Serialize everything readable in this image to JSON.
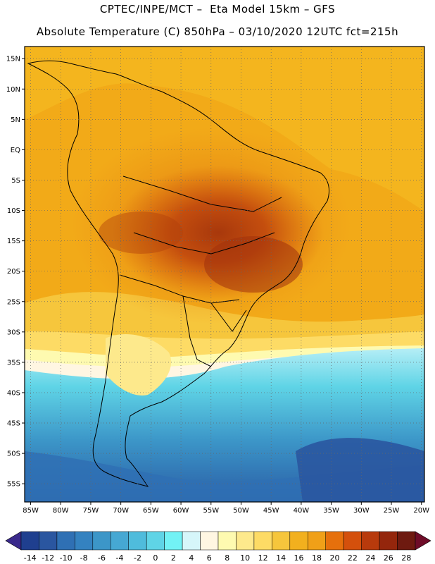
{
  "header": {
    "line1": "CPTEC/INPE/MCT –  Eta Model 15km – GFS",
    "line2": "Absolute Temperature (C) 850hPa – 03/10/2020 12UTC fct=215h"
  },
  "map": {
    "lat_labels": [
      "15N",
      "10N",
      "5N",
      "EQ",
      "5S",
      "10S",
      "15S",
      "20S",
      "25S",
      "30S",
      "35S",
      "40S",
      "45S",
      "50S",
      "55S"
    ],
    "lon_labels": [
      "85W",
      "80W",
      "75W",
      "70W",
      "65W",
      "60W",
      "55W",
      "50W",
      "45W",
      "40W",
      "35W",
      "30W",
      "25W",
      "20W"
    ],
    "lat_values": [
      15,
      10,
      5,
      0,
      -5,
      -10,
      -15,
      -20,
      -25,
      -30,
      -35,
      -40,
      -45,
      -50,
      -55
    ],
    "lon_values": [
      -85,
      -80,
      -75,
      -70,
      -65,
      -60,
      -55,
      -50,
      -45,
      -40,
      -35,
      -30,
      -25,
      -20
    ],
    "lat_range": [
      -58,
      17
    ],
    "lon_range": [
      -86,
      -19.5
    ]
  },
  "colorbar": {
    "labels": [
      "-14",
      "-12",
      "-10",
      "-8",
      "-6",
      "-4",
      "-2",
      "0",
      "2",
      "4",
      "6",
      "8",
      "10",
      "12",
      "14",
      "16",
      "18",
      "20",
      "22",
      "24",
      "26",
      "28"
    ],
    "colors": [
      "#1f3f8f",
      "#2a56a0",
      "#2f70b4",
      "#3482c0",
      "#3c96c8",
      "#46a8d3",
      "#4fbcdc",
      "#5fd4e6",
      "#72f2f5",
      "#d6f6fa",
      "#fff6e2",
      "#fefab0",
      "#fde98c",
      "#fddb65",
      "#f6c63c",
      "#f2b01e",
      "#f0a018",
      "#e6700c",
      "#d4500c",
      "#b83a0c",
      "#94260c",
      "#6e1a10"
    ]
  }
}
